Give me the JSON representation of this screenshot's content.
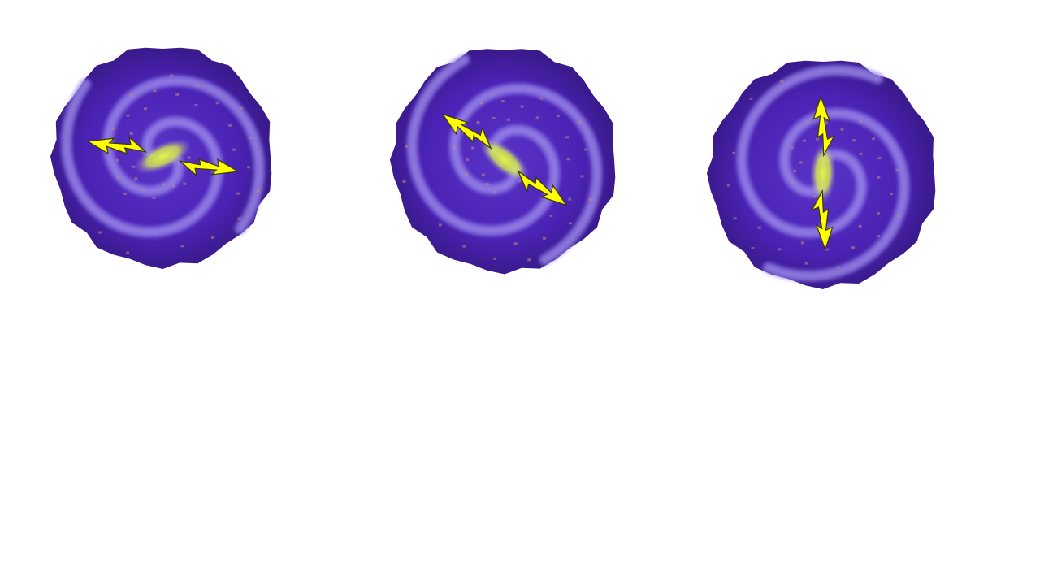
{
  "scene": {
    "background": "#ffffff",
    "sprites": [
      {
        "name": "galaxy-sprite-1",
        "jet_angle_deg": 15
      },
      {
        "name": "galaxy-sprite-2",
        "jet_angle_deg": 40
      },
      {
        "name": "galaxy-sprite-3",
        "jet_angle_deg": 92
      }
    ]
  },
  "palette": {
    "disk_outer": "#3a1a8c",
    "disk_mid": "#5a34c8",
    "disk_arm": "#8f7ae8",
    "core_glow": "#dff54a",
    "dust_spots": "#c38a7a",
    "lightning_fill": "#ffff00",
    "lightning_stroke": "#3a3a00"
  }
}
